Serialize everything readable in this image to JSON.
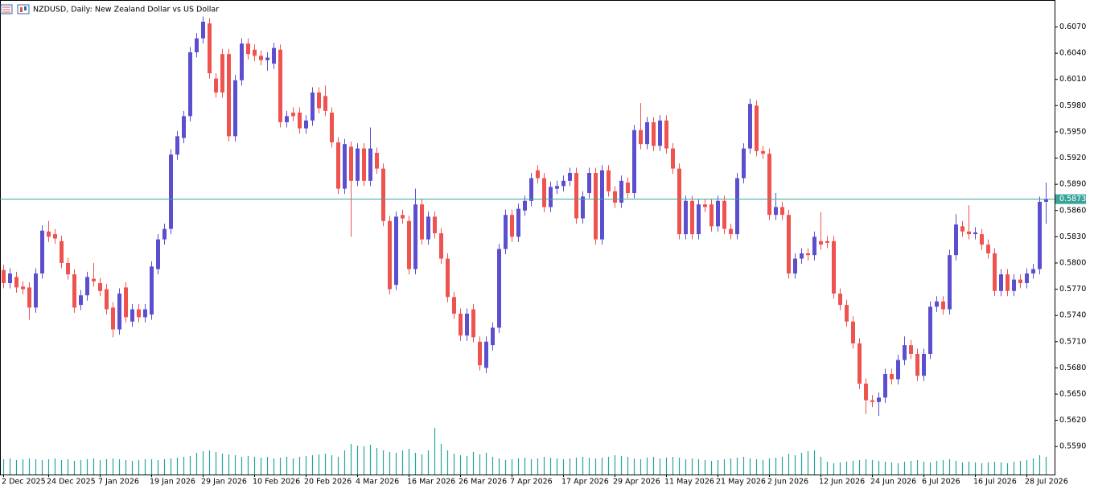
{
  "chart_data": {
    "type": "candlestick",
    "title": "NZDUSD, Daily:  New Zealand Dollar vs US Dollar",
    "categories": [
      "2 Dec 2025",
      null,
      null,
      null,
      null,
      null,
      null,
      "24 Dec 2025",
      null,
      null,
      null,
      null,
      null,
      null,
      null,
      "7 Jan 2026",
      null,
      null,
      null,
      null,
      null,
      null,
      null,
      "19 Jan 2026",
      null,
      null,
      null,
      null,
      null,
      null,
      null,
      "29 Jan 2026",
      null,
      null,
      null,
      null,
      null,
      null,
      null,
      "10 Feb 2026",
      null,
      null,
      null,
      null,
      null,
      null,
      null,
      "20 Feb 2026",
      null,
      null,
      null,
      null,
      null,
      null,
      null,
      "4 Mar 2026",
      null,
      null,
      null,
      null,
      null,
      null,
      null,
      "16 Mar 2026",
      null,
      null,
      null,
      null,
      null,
      null,
      null,
      "26 Mar 2026",
      null,
      null,
      null,
      null,
      null,
      null,
      null,
      "7 Apr 2026",
      null,
      null,
      null,
      null,
      null,
      null,
      null,
      "17 Apr 2026",
      null,
      null,
      null,
      null,
      null,
      null,
      null,
      "29 Apr 2026",
      null,
      null,
      null,
      null,
      null,
      null,
      null,
      "11 May 2026",
      null,
      null,
      null,
      null,
      null,
      null,
      null,
      "21 May 2026",
      null,
      null,
      null,
      null,
      null,
      null,
      null,
      "2 Jun 2026",
      null,
      null,
      null,
      null,
      null,
      null,
      null,
      "12 Jun 2026",
      null,
      null,
      null,
      null,
      null,
      null,
      null,
      "24 Jun 2026",
      null,
      null,
      null,
      null,
      null,
      null,
      null,
      "6 Jul 2026",
      null,
      null,
      null,
      null,
      null,
      null,
      null,
      "16 Jul 2026",
      null,
      null,
      null,
      null,
      null,
      null,
      null,
      "28 Jul 2026",
      null,
      null,
      null
    ],
    "open": [
      0.5792,
      0.5777,
      0.5784,
      0.5773,
      0.5772,
      0.5749,
      0.5788,
      0.5836,
      0.5833,
      0.5825,
      0.58,
      0.5787,
      0.5752,
      0.5763,
      0.5782,
      0.5777,
      0.577,
      0.5749,
      0.5724,
      0.5772,
      0.5733,
      0.5747,
      0.5738,
      0.5741,
      0.5793,
      0.5827,
      0.5839,
      0.5924,
      0.5943,
      0.5968,
      0.6041,
      0.6057,
      0.6074,
      0.6011,
      0.6039,
      0.6039,
      0.5945,
      0.6009,
      0.6051,
      0.6044,
      0.6037,
      0.6032,
      0.6028,
      0.6044,
      0.5961,
      0.5972,
      0.5972,
      0.5954,
      0.5963,
      0.5995,
      0.5991,
      0.5972,
      0.5938,
      0.5885,
      0.5933,
      0.5894,
      0.5931,
      0.5894,
      0.5926,
      0.5908,
      0.5848,
      0.5775,
      0.5855,
      0.5848,
      0.5793,
      0.5867,
      0.5827,
      0.5853,
      0.5834,
      0.5805,
      0.5761,
      0.5742,
      0.5717,
      0.5747,
      0.571,
      0.568,
      0.5706,
      0.5726,
      0.5816,
      0.5855,
      0.583,
      0.586,
      0.5871,
      0.5906,
      0.5897,
      0.5864,
      0.5885,
      0.5888,
      0.5894,
      0.5903,
      0.5851,
      0.588,
      0.5903,
      0.5827,
      0.5906,
      0.5882,
      0.5869,
      0.5892,
      0.588,
      0.5952,
      0.5936,
      0.5961,
      0.5934,
      0.5963,
      0.5931,
      0.5908,
      0.5833,
      0.5871,
      0.5833,
      0.5867,
      0.5867,
      0.5842,
      0.5871,
      0.5839,
      0.5833,
      0.5897,
      0.5931,
      0.598,
      0.5928,
      0.5925,
      0.5855,
      0.5864,
      0.5855,
      0.5788,
      0.5805,
      0.5811,
      0.5809,
      0.5825,
      0.5825,
      0.5825,
      0.5765,
      0.5752,
      0.5733,
      0.5708,
      0.5662,
      0.5643,
      0.5641,
      0.5646,
      0.5673,
      0.5667,
      0.5689,
      0.5706,
      0.5696,
      0.5671,
      0.5696,
      0.575,
      0.5756,
      0.5747,
      0.5809,
      0.5842,
      0.5836,
      0.5833,
      0.5833,
      0.5821,
      0.5811,
      0.5768,
      0.5787,
      0.5768,
      0.5781,
      0.5777,
      0.5788,
      0.5793,
      0.587
    ],
    "high": [
      0.5798,
      0.5794,
      0.579,
      0.5779,
      0.5778,
      0.5794,
      0.5843,
      0.5848,
      0.5839,
      0.5831,
      0.5806,
      0.5793,
      0.5769,
      0.579,
      0.58,
      0.5783,
      0.5776,
      0.5755,
      0.5771,
      0.5778,
      0.5753,
      0.5753,
      0.5753,
      0.5802,
      0.5833,
      0.5845,
      0.593,
      0.5951,
      0.5974,
      0.6047,
      0.6063,
      0.6082,
      0.608,
      0.6017,
      0.6045,
      0.6045,
      0.6015,
      0.6057,
      0.6057,
      0.605,
      0.6043,
      0.6041,
      0.6052,
      0.605,
      0.5974,
      0.5978,
      0.5978,
      0.5969,
      0.6001,
      0.6001,
      0.6003,
      0.5978,
      0.5944,
      0.5942,
      0.5939,
      0.5937,
      0.5937,
      0.5955,
      0.5932,
      0.5914,
      0.5854,
      0.5859,
      0.5861,
      0.5854,
      0.5885,
      0.5873,
      0.5859,
      0.5859,
      0.584,
      0.5811,
      0.5767,
      0.5748,
      0.5748,
      0.5753,
      0.5716,
      0.5716,
      0.5732,
      0.5822,
      0.5861,
      0.5861,
      0.5868,
      0.5877,
      0.5903,
      0.5912,
      0.5903,
      0.5893,
      0.5894,
      0.59,
      0.5909,
      0.5909,
      0.5882,
      0.5909,
      0.5909,
      0.5912,
      0.5912,
      0.5888,
      0.59,
      0.5898,
      0.5958,
      0.5983,
      0.5967,
      0.5967,
      0.5969,
      0.5969,
      0.5937,
      0.5914,
      0.5877,
      0.5877,
      0.5873,
      0.5873,
      0.5873,
      0.5877,
      0.5877,
      0.5845,
      0.5903,
      0.5937,
      0.5988,
      0.5986,
      0.5934,
      0.5931,
      0.588,
      0.587,
      0.5861,
      0.5811,
      0.5817,
      0.5817,
      0.5836,
      0.5858,
      0.5831,
      0.5831,
      0.5771,
      0.5758,
      0.5739,
      0.5714,
      0.5668,
      0.5649,
      0.5652,
      0.5679,
      0.5679,
      0.5695,
      0.5716,
      0.5712,
      0.5702,
      0.5702,
      0.5756,
      0.5762,
      0.5762,
      0.5815,
      0.5856,
      0.5848,
      0.5866,
      0.5841,
      0.5839,
      0.5827,
      0.5817,
      0.5793,
      0.5793,
      0.5787,
      0.5787,
      0.5794,
      0.5799,
      0.5876,
      0.5892
    ],
    "low": [
      0.5771,
      0.5771,
      0.5766,
      0.5764,
      0.5735,
      0.5743,
      0.5782,
      0.5824,
      0.5822,
      0.5794,
      0.5781,
      0.5743,
      0.5746,
      0.5757,
      0.5773,
      0.5762,
      0.5741,
      0.5715,
      0.5718,
      0.5732,
      0.5727,
      0.5732,
      0.5732,
      0.5735,
      0.5787,
      0.5821,
      0.5833,
      0.5918,
      0.5937,
      0.5962,
      0.6035,
      0.6051,
      0.6011,
      0.5989,
      0.5989,
      0.5939,
      0.5939,
      0.6003,
      0.6033,
      0.6031,
      0.6026,
      0.602,
      0.6022,
      0.5955,
      0.5955,
      0.5962,
      0.5948,
      0.5948,
      0.5957,
      0.5971,
      0.5968,
      0.5932,
      0.5879,
      0.5879,
      0.583,
      0.5888,
      0.5888,
      0.5888,
      0.5902,
      0.5842,
      0.5764,
      0.5769,
      0.5845,
      0.5787,
      0.5787,
      0.5821,
      0.5821,
      0.5828,
      0.5799,
      0.5755,
      0.5736,
      0.5711,
      0.5711,
      0.5709,
      0.5677,
      0.5674,
      0.57,
      0.572,
      0.581,
      0.5824,
      0.5824,
      0.5854,
      0.5865,
      0.5891,
      0.5858,
      0.5858,
      0.5879,
      0.5882,
      0.5888,
      0.5845,
      0.5845,
      0.5874,
      0.5821,
      0.5821,
      0.5876,
      0.5863,
      0.5863,
      0.5874,
      0.5874,
      0.593,
      0.593,
      0.5928,
      0.5928,
      0.5925,
      0.5902,
      0.5827,
      0.5827,
      0.5827,
      0.5827,
      0.5858,
      0.5836,
      0.5836,
      0.5833,
      0.5827,
      0.5827,
      0.5891,
      0.5925,
      0.5922,
      0.5919,
      0.5849,
      0.5849,
      0.5849,
      0.5782,
      0.5782,
      0.5799,
      0.5803,
      0.5803,
      0.5815,
      0.5817,
      0.5759,
      0.5746,
      0.5727,
      0.5702,
      0.5656,
      0.5627,
      0.5635,
      0.5625,
      0.564,
      0.5661,
      0.5661,
      0.5683,
      0.569,
      0.5665,
      0.5665,
      0.569,
      0.5744,
      0.5741,
      0.5741,
      0.5803,
      0.583,
      0.5827,
      0.5827,
      0.5815,
      0.5805,
      0.5762,
      0.5762,
      0.5762,
      0.5762,
      0.5771,
      0.5771,
      0.5782,
      0.5787,
      0.5845
    ],
    "close": [
      0.5777,
      0.5788,
      0.5772,
      0.577,
      0.5749,
      0.5788,
      0.5837,
      0.583,
      0.5828,
      0.58,
      0.5787,
      0.5749,
      0.5763,
      0.5784,
      0.5779,
      0.5768,
      0.5747,
      0.5724,
      0.5765,
      0.5738,
      0.5747,
      0.5738,
      0.5747,
      0.5796,
      0.5827,
      0.5839,
      0.5924,
      0.5945,
      0.5968,
      0.6041,
      0.6057,
      0.6076,
      0.6017,
      0.5995,
      0.5995,
      0.5945,
      0.6009,
      0.6051,
      0.6039,
      0.6037,
      0.6032,
      0.6035,
      0.6046,
      0.5961,
      0.5968,
      0.5968,
      0.5954,
      0.5963,
      0.5995,
      0.5977,
      0.5974,
      0.5938,
      0.5885,
      0.5936,
      0.5894,
      0.5931,
      0.5894,
      0.5931,
      0.5908,
      0.5848,
      0.577,
      0.5853,
      0.5851,
      0.5793,
      0.5867,
      0.5827,
      0.5853,
      0.5834,
      0.5805,
      0.5761,
      0.5742,
      0.5717,
      0.5742,
      0.5715,
      0.5683,
      0.571,
      0.5726,
      0.5816,
      0.5855,
      0.583,
      0.5862,
      0.5871,
      0.5897,
      0.5897,
      0.5864,
      0.5887,
      0.5888,
      0.5894,
      0.5903,
      0.5851,
      0.5876,
      0.5903,
      0.5827,
      0.5906,
      0.5882,
      0.5869,
      0.5894,
      0.588,
      0.5952,
      0.5936,
      0.5961,
      0.5934,
      0.5963,
      0.5931,
      0.5908,
      0.5833,
      0.5871,
      0.5833,
      0.5867,
      0.5864,
      0.5842,
      0.5871,
      0.5839,
      0.5833,
      0.5897,
      0.5931,
      0.5982,
      0.5928,
      0.5925,
      0.5855,
      0.5864,
      0.5855,
      0.5788,
      0.5805,
      0.5811,
      0.5809,
      0.583,
      0.5821,
      0.5823,
      0.5765,
      0.5752,
      0.5733,
      0.5708,
      0.5662,
      0.5643,
      0.5641,
      0.5646,
      0.5673,
      0.5667,
      0.5689,
      0.5706,
      0.5696,
      0.5671,
      0.5696,
      0.575,
      0.5756,
      0.5747,
      0.5809,
      0.5844,
      0.5836,
      0.5833,
      0.5835,
      0.5821,
      0.5811,
      0.5768,
      0.5787,
      0.5768,
      0.5781,
      0.5777,
      0.5788,
      0.5793,
      0.587,
      0.5873
    ],
    "volume": [
      19,
      20,
      18,
      19,
      20,
      19,
      18,
      19,
      20,
      18,
      19,
      17,
      18,
      19,
      20,
      18,
      19,
      20,
      19,
      18,
      17,
      18,
      19,
      19,
      18,
      19,
      20,
      21,
      22,
      23,
      27,
      29,
      30,
      28,
      26,
      25,
      24,
      22,
      23,
      22,
      21,
      22,
      20,
      21,
      22,
      20,
      22,
      23,
      24,
      25,
      26,
      24,
      22,
      30,
      38,
      36,
      35,
      37,
      33,
      30,
      28,
      27,
      30,
      32,
      27,
      25,
      30,
      58,
      38,
      30,
      26,
      24,
      23,
      28,
      25,
      27,
      22,
      20,
      18,
      19,
      20,
      21,
      19,
      20,
      22,
      21,
      20,
      19,
      20,
      21,
      22,
      21,
      20,
      21,
      22,
      24,
      23,
      22,
      20,
      19,
      21,
      22,
      20,
      21,
      22,
      21,
      19,
      20,
      19,
      18,
      17,
      18,
      19,
      20,
      21,
      22,
      20,
      19,
      18,
      20,
      21,
      22,
      26,
      24,
      27,
      29,
      30,
      22,
      16,
      14,
      15,
      16,
      17,
      18,
      19,
      18,
      17,
      16,
      15,
      14,
      16,
      17,
      18,
      16,
      15,
      17,
      18,
      19,
      17,
      15,
      16,
      15,
      14,
      15,
      16,
      15,
      14,
      16,
      17,
      18,
      20,
      24,
      22
    ],
    "up_color": "#5b4fd0",
    "down_color": "#ef5350",
    "volume_color": "#26a69a",
    "ylim": [
      0.5558,
      0.6099
    ],
    "yticks": [
      {
        "value": 0.607,
        "label": "0.6070"
      },
      {
        "value": 0.604,
        "label": "0.6040"
      },
      {
        "value": 0.601,
        "label": "0.6010"
      },
      {
        "value": 0.598,
        "label": "0.5980"
      },
      {
        "value": 0.595,
        "label": "0.5950"
      },
      {
        "value": 0.592,
        "label": "0.5920"
      },
      {
        "value": 0.589,
        "label": "0.5890"
      },
      {
        "value": 0.586,
        "label": "0.5860"
      },
      {
        "value": 0.583,
        "label": "0.5830"
      },
      {
        "value": 0.58,
        "label": "0.5800"
      },
      {
        "value": 0.577,
        "label": "0.5770"
      },
      {
        "value": 0.574,
        "label": "0.5740"
      },
      {
        "value": 0.571,
        "label": "0.5710"
      },
      {
        "value": 0.568,
        "label": "0.5680"
      },
      {
        "value": 0.565,
        "label": "0.5650"
      },
      {
        "value": 0.562,
        "label": "0.5620"
      },
      {
        "value": 0.559,
        "label": "0.5590"
      }
    ],
    "volume_ylim": [
      0,
      100
    ],
    "current_price": {
      "value": 0.5873,
      "label": "0.5873"
    },
    "grid": false
  }
}
